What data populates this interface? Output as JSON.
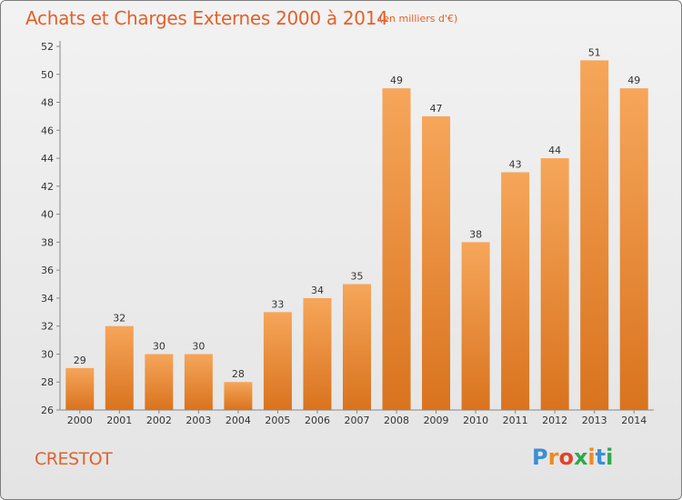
{
  "title": "Achats et Charges Externes 2000 à 2014",
  "unit": "(en milliers d'€)",
  "commune": "CRESTOT",
  "logo": {
    "letters": [
      "P",
      "r",
      "o",
      "x",
      "i",
      "t",
      "i"
    ],
    "colors": [
      "#3a8fd6",
      "#f08a1c",
      "#e0442b",
      "#2fa84f",
      "#f08a1c",
      "#3a8fd6",
      "#2fa84f"
    ]
  },
  "colors": {
    "bar_light": "#f6a65a",
    "bar_dark": "#d9731e",
    "accent": "#e0622b"
  },
  "chart_data": {
    "type": "bar",
    "title": "Achats et Charges Externes 2000 à 2014",
    "subtitle": "(en milliers d'€)",
    "categories": [
      "2000",
      "2001",
      "2002",
      "2003",
      "2004",
      "2005",
      "2006",
      "2007",
      "2008",
      "2009",
      "2010",
      "2011",
      "2012",
      "2013",
      "2014"
    ],
    "values": [
      29,
      32,
      30,
      30,
      28,
      33,
      34,
      35,
      49,
      47,
      38,
      43,
      44,
      51,
      49
    ],
    "data_labels": [
      "29",
      "32",
      "30",
      "30",
      "28",
      "33",
      "34",
      "35",
      "49",
      "47",
      "38",
      "43",
      "44",
      "51",
      "49"
    ],
    "yticks": [
      "26",
      "28",
      "30",
      "32",
      "34",
      "36",
      "38",
      "40",
      "42",
      "44",
      "46",
      "48",
      "50",
      "52"
    ],
    "ylim": [
      26,
      52
    ],
    "grid": false,
    "legend": "none"
  }
}
